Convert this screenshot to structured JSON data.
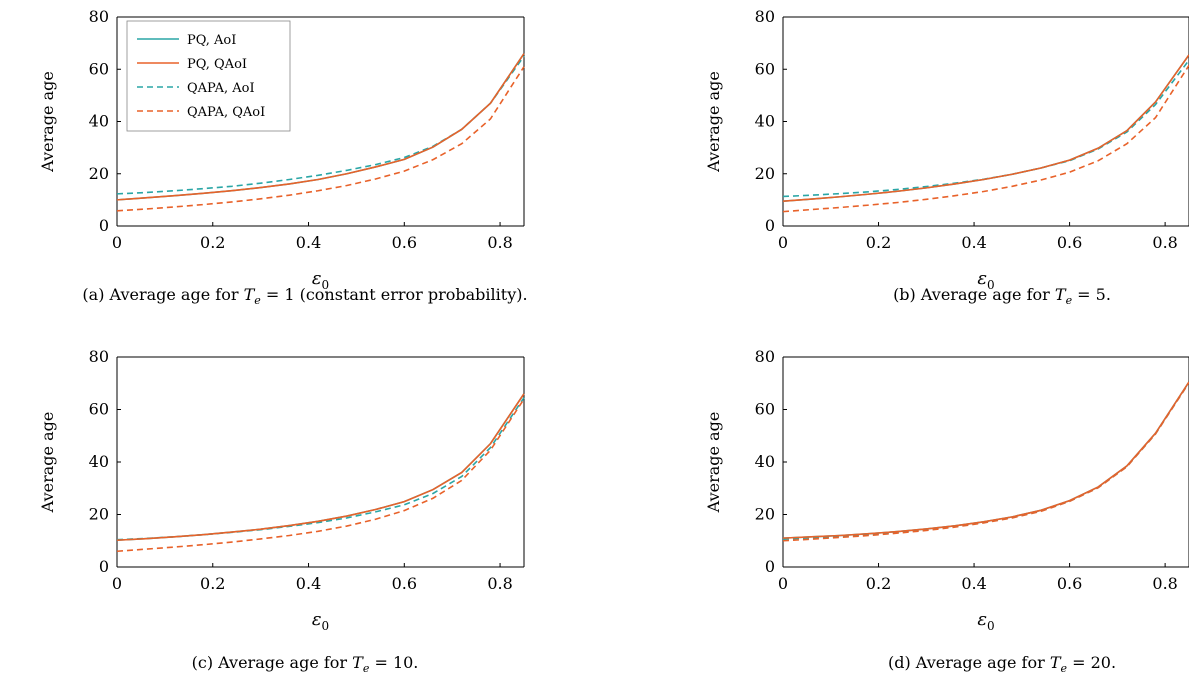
{
  "colors": {
    "aoi": "#2aa6a6",
    "qaoi": "#e8622a"
  },
  "chart_data": [
    {
      "type": "line",
      "caption": "(a) Average age for T_e = 1 (constant error probability).",
      "caption_parts": [
        "(a) Average age for ",
        "T",
        "e",
        " = 1 (constant error probability)."
      ],
      "xlabel": "ε",
      "xlabel_sub": "0",
      "ylabel": "Average age",
      "xlim": [
        0,
        0.85
      ],
      "ylim": [
        0,
        80
      ],
      "xticks": [
        "0",
        "0.2",
        "0.4",
        "0.6",
        "0.8"
      ],
      "yticks": [
        "0",
        "20",
        "40",
        "60",
        "80"
      ],
      "legend": {
        "placement": "top-left",
        "visible": true
      },
      "x": [
        0,
        0.06,
        0.12,
        0.18,
        0.24,
        0.3,
        0.36,
        0.42,
        0.48,
        0.54,
        0.6,
        0.66,
        0.72,
        0.78,
        0.85
      ],
      "series": [
        {
          "name": "PQ, AoI",
          "style": "solid",
          "color_key": "aoi",
          "values": [
            10.0,
            10.8,
            11.6,
            12.5,
            13.5,
            14.7,
            16.1,
            17.8,
            20.0,
            22.6,
            25.5,
            30.2,
            37.0,
            47.0,
            66.0
          ]
        },
        {
          "name": "PQ, QAoI",
          "style": "solid",
          "color_key": "qaoi",
          "values": [
            10.0,
            10.8,
            11.6,
            12.5,
            13.5,
            14.7,
            16.1,
            17.8,
            20.0,
            22.6,
            25.5,
            30.2,
            37.0,
            47.0,
            66.0
          ]
        },
        {
          "name": "QAPA, AoI",
          "style": "dashed",
          "color_key": "aoi",
          "values": [
            12.3,
            12.8,
            13.5,
            14.3,
            15.2,
            16.4,
            17.8,
            19.4,
            21.3,
            23.5,
            26.2,
            30.5,
            37.0,
            47.0,
            65.0
          ]
        },
        {
          "name": "QAPA, QAoI",
          "style": "dashed",
          "color_key": "qaoi",
          "values": [
            5.8,
            6.5,
            7.3,
            8.2,
            9.2,
            10.4,
            11.8,
            13.5,
            15.5,
            18.0,
            21.0,
            25.4,
            31.5,
            41.0,
            61.0
          ]
        }
      ]
    },
    {
      "type": "line",
      "caption": "(b) Average age for T_e = 5.",
      "caption_parts": [
        "(b) Average age for ",
        "T",
        "e",
        " = 5."
      ],
      "xlabel": "ε",
      "xlabel_sub": "0",
      "ylabel": "Average age",
      "xlim": [
        0,
        0.85
      ],
      "ylim": [
        0,
        80
      ],
      "xticks": [
        "0",
        "0.2",
        "0.4",
        "0.6",
        "0.8"
      ],
      "yticks": [
        "0",
        "20",
        "40",
        "60",
        "80"
      ],
      "legend": {
        "visible": false
      },
      "x": [
        0,
        0.06,
        0.12,
        0.18,
        0.24,
        0.3,
        0.36,
        0.42,
        0.48,
        0.54,
        0.6,
        0.66,
        0.72,
        0.78,
        0.85
      ],
      "series": [
        {
          "name": "PQ, AoI",
          "style": "solid",
          "color_key": "aoi",
          "values": [
            9.5,
            10.3,
            11.2,
            12.2,
            13.3,
            14.6,
            16.1,
            17.8,
            19.8,
            22.2,
            25.2,
            29.8,
            36.5,
            47.5,
            65.5
          ]
        },
        {
          "name": "PQ, QAoI",
          "style": "solid",
          "color_key": "qaoi",
          "values": [
            9.5,
            10.3,
            11.2,
            12.2,
            13.3,
            14.6,
            16.1,
            17.8,
            19.8,
            22.2,
            25.2,
            29.8,
            36.5,
            47.5,
            65.5
          ]
        },
        {
          "name": "QAPA, AoI",
          "style": "dashed",
          "color_key": "aoi",
          "values": [
            11.3,
            11.8,
            12.4,
            13.1,
            14.0,
            15.1,
            16.4,
            17.9,
            19.8,
            22.2,
            25.0,
            29.5,
            36.0,
            46.5,
            63.5
          ]
        },
        {
          "name": "QAPA, QAoI",
          "style": "dashed",
          "color_key": "qaoi",
          "values": [
            5.5,
            6.3,
            7.1,
            8.0,
            9.0,
            10.2,
            11.6,
            13.2,
            15.2,
            17.6,
            20.6,
            25.0,
            31.5,
            41.5,
            61.5
          ]
        }
      ]
    },
    {
      "type": "line",
      "caption": "(c) Average age for T_e = 10.",
      "caption_parts": [
        "(c) Average age for ",
        "T",
        "e",
        " = 10."
      ],
      "xlabel": "ε",
      "xlabel_sub": "0",
      "ylabel": "Average age",
      "xlim": [
        0,
        0.85
      ],
      "ylim": [
        0,
        80
      ],
      "xticks": [
        "0",
        "0.2",
        "0.4",
        "0.6",
        "0.8"
      ],
      "yticks": [
        "0",
        "20",
        "40",
        "60",
        "80"
      ],
      "legend": {
        "visible": false
      },
      "x": [
        0,
        0.06,
        0.12,
        0.18,
        0.24,
        0.3,
        0.36,
        0.42,
        0.48,
        0.54,
        0.6,
        0.66,
        0.72,
        0.78,
        0.85
      ],
      "series": [
        {
          "name": "PQ, AoI",
          "style": "solid",
          "color_key": "aoi",
          "values": [
            10.2,
            10.8,
            11.5,
            12.3,
            13.3,
            14.4,
            15.8,
            17.4,
            19.4,
            21.9,
            24.9,
            29.5,
            36.0,
            47.0,
            66.0
          ]
        },
        {
          "name": "PQ, QAoI",
          "style": "solid",
          "color_key": "qaoi",
          "values": [
            10.2,
            10.8,
            11.5,
            12.3,
            13.3,
            14.4,
            15.8,
            17.4,
            19.4,
            21.9,
            24.9,
            29.5,
            36.0,
            47.0,
            66.0
          ]
        },
        {
          "name": "QAPA, AoI",
          "style": "dashed",
          "color_key": "aoi",
          "values": [
            10.4,
            10.9,
            11.5,
            12.3,
            13.2,
            14.2,
            15.5,
            16.9,
            18.7,
            21.0,
            23.7,
            28.0,
            34.5,
            45.5,
            64.5
          ]
        },
        {
          "name": "QAPA, QAoI",
          "style": "dashed",
          "color_key": "qaoi",
          "values": [
            6.0,
            6.8,
            7.6,
            8.5,
            9.5,
            10.7,
            12.0,
            13.6,
            15.6,
            18.2,
            21.5,
            26.2,
            33.0,
            44.5,
            64.0
          ]
        }
      ]
    },
    {
      "type": "line",
      "caption": "(d) Average age for T_e = 20.",
      "caption_parts": [
        "(d) Average age for ",
        "T",
        "e",
        " = 20."
      ],
      "xlabel": "ε",
      "xlabel_sub": "0",
      "ylabel": "Average age",
      "xlim": [
        0,
        0.85
      ],
      "ylim": [
        0,
        80
      ],
      "xticks": [
        "0",
        "0.2",
        "0.4",
        "0.6",
        "0.8"
      ],
      "yticks": [
        "0",
        "20",
        "40",
        "60",
        "80"
      ],
      "legend": {
        "visible": false
      },
      "x": [
        0,
        0.06,
        0.12,
        0.18,
        0.24,
        0.3,
        0.36,
        0.42,
        0.48,
        0.54,
        0.6,
        0.66,
        0.72,
        0.78,
        0.85
      ],
      "series": [
        {
          "name": "PQ, AoI",
          "style": "solid",
          "color_key": "aoi",
          "values": [
            11.0,
            11.5,
            12.0,
            12.7,
            13.5,
            14.5,
            15.7,
            17.2,
            19.1,
            21.6,
            25.3,
            30.5,
            38.5,
            51.0,
            70.5
          ]
        },
        {
          "name": "PQ, QAoI",
          "style": "solid",
          "color_key": "qaoi",
          "values": [
            11.0,
            11.5,
            12.0,
            12.7,
            13.5,
            14.5,
            15.7,
            17.2,
            19.1,
            21.6,
            25.3,
            30.5,
            38.5,
            51.0,
            70.5
          ]
        },
        {
          "name": "QAPA, AoI",
          "style": "dashed",
          "color_key": "aoi",
          "values": [
            10.6,
            11.1,
            11.7,
            12.4,
            13.2,
            14.2,
            15.5,
            17.0,
            18.9,
            21.4,
            25.1,
            30.3,
            38.3,
            50.8,
            70.3
          ]
        },
        {
          "name": "QAPA, QAoI",
          "style": "dashed",
          "color_key": "qaoi",
          "values": [
            10.0,
            10.6,
            11.3,
            12.0,
            12.9,
            13.9,
            15.2,
            16.8,
            18.7,
            21.2,
            25.0,
            30.2,
            38.2,
            50.7,
            70.2
          ]
        }
      ]
    }
  ]
}
